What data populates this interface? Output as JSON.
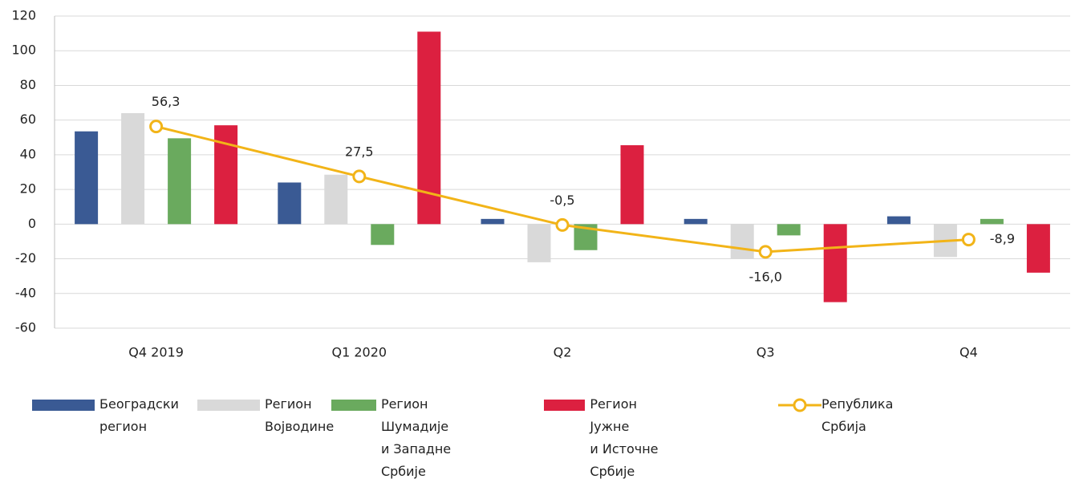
{
  "chart_data": {
    "type": "bar",
    "categories": [
      "Q4 2019",
      "Q1 2020",
      "Q2",
      "Q3",
      "Q4"
    ],
    "series": [
      {
        "name": "Београдски\nрегион",
        "color": "#3a5a94",
        "values": [
          53.5,
          24,
          3,
          3,
          4.5
        ]
      },
      {
        "name": "Регион\nВојводине",
        "color": "#d9d9d9",
        "values": [
          64,
          28.5,
          -22,
          -20,
          -19
        ]
      },
      {
        "name": "Регион Шумадије\nи Западне Србије",
        "color": "#6aaa5e",
        "values": [
          49.5,
          -12,
          -15,
          -6.5,
          3
        ]
      },
      {
        "name": "Регион Јужне\nи Источне Србије",
        "color": "#dc2040",
        "values": [
          57,
          111,
          45.5,
          -45,
          -28
        ]
      },
      {
        "name": "Република\nСрбија",
        "color": "#f2b418",
        "type": "line",
        "values": [
          56.3,
          27.5,
          -0.5,
          -16.0,
          -8.9
        ],
        "value_labels": [
          "56,3",
          "27,5",
          "-0,5",
          "-16,0",
          "-8,9"
        ]
      }
    ],
    "ylim": [
      -60,
      120
    ],
    "yticks": [
      -60,
      -40,
      -20,
      0,
      20,
      40,
      60,
      80,
      100,
      120
    ],
    "grid": true
  }
}
